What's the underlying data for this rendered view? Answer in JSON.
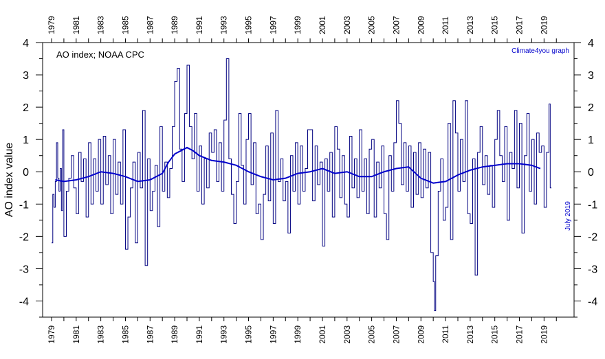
{
  "chart_data": {
    "type": "line",
    "title": "AO index; NOAA CPC",
    "credit": "Climate4you graph",
    "date_note": "July 2019",
    "ylabel": "AO index value",
    "xlabel": "",
    "xlim": [
      1979,
      2020.6
    ],
    "ylim": [
      -4.5,
      4
    ],
    "y_ticks": [
      4,
      3,
      2,
      1,
      0,
      -1,
      -2,
      -3,
      -4
    ],
    "x_tick_labels": [
      "1979",
      "1981",
      "1983",
      "1985",
      "1987",
      "1989",
      "1991",
      "1993",
      "1995",
      "1997",
      "1999",
      "2001",
      "2003",
      "2005",
      "2007",
      "2009",
      "2011",
      "2013",
      "2015",
      "2017",
      "2019"
    ],
    "grid": false,
    "series": [
      {
        "name": "",
        "style": "monthly-step",
        "color": "#000080",
        "points": [
          [
            1979.0,
            -2.2
          ],
          [
            1979.1,
            -0.7
          ],
          [
            1979.2,
            -1.1
          ],
          [
            1979.3,
            -0.3
          ],
          [
            1979.4,
            0.9
          ],
          [
            1979.5,
            -0.2
          ],
          [
            1979.6,
            -0.6
          ],
          [
            1979.7,
            0.1
          ],
          [
            1979.8,
            -1.2
          ],
          [
            1979.9,
            1.3
          ],
          [
            1980.0,
            -2.0
          ],
          [
            1980.2,
            -0.6
          ],
          [
            1980.4,
            -0.2
          ],
          [
            1980.6,
            0.5
          ],
          [
            1980.8,
            -0.5
          ],
          [
            1981.0,
            -1.3
          ],
          [
            1981.2,
            0.6
          ],
          [
            1981.4,
            -0.3
          ],
          [
            1981.6,
            0.4
          ],
          [
            1981.8,
            -1.4
          ],
          [
            1982.0,
            0.9
          ],
          [
            1982.2,
            -1.0
          ],
          [
            1982.4,
            0.4
          ],
          [
            1982.6,
            -0.6
          ],
          [
            1982.8,
            1.0
          ],
          [
            1983.0,
            -1.0
          ],
          [
            1983.2,
            1.1
          ],
          [
            1983.4,
            -0.4
          ],
          [
            1983.6,
            0.5
          ],
          [
            1983.8,
            -1.3
          ],
          [
            1984.0,
            1.0
          ],
          [
            1984.2,
            -0.7
          ],
          [
            1984.4,
            0.3
          ],
          [
            1984.6,
            -1.0
          ],
          [
            1984.8,
            1.3
          ],
          [
            1985.0,
            -2.4
          ],
          [
            1985.2,
            -1.4
          ],
          [
            1985.4,
            -0.5
          ],
          [
            1985.6,
            0.3
          ],
          [
            1985.8,
            -2.2
          ],
          [
            1986.0,
            0.6
          ],
          [
            1986.2,
            -0.5
          ],
          [
            1986.4,
            1.9
          ],
          [
            1986.6,
            -2.9
          ],
          [
            1986.8,
            0.4
          ],
          [
            1987.0,
            -1.2
          ],
          [
            1987.2,
            -0.6
          ],
          [
            1987.4,
            0.2
          ],
          [
            1987.6,
            -1.7
          ],
          [
            1987.8,
            1.4
          ],
          [
            1988.0,
            -0.6
          ],
          [
            1988.2,
            0.3
          ],
          [
            1988.4,
            -0.8
          ],
          [
            1988.6,
            0.1
          ],
          [
            1988.8,
            1.4
          ],
          [
            1989.0,
            2.8
          ],
          [
            1989.2,
            3.2
          ],
          [
            1989.4,
            0.7
          ],
          [
            1989.6,
            -0.3
          ],
          [
            1989.8,
            1.8
          ],
          [
            1990.0,
            3.3
          ],
          [
            1990.2,
            1.4
          ],
          [
            1990.4,
            0.4
          ],
          [
            1990.6,
            1.8
          ],
          [
            1990.8,
            -0.6
          ],
          [
            1991.0,
            0.8
          ],
          [
            1991.2,
            -1.0
          ],
          [
            1991.4,
            0.4
          ],
          [
            1991.6,
            -0.5
          ],
          [
            1991.8,
            1.2
          ],
          [
            1992.0,
            0.6
          ],
          [
            1992.2,
            1.3
          ],
          [
            1992.4,
            -0.3
          ],
          [
            1992.6,
            0.9
          ],
          [
            1992.8,
            -0.6
          ],
          [
            1993.0,
            1.6
          ],
          [
            1993.2,
            3.5
          ],
          [
            1993.4,
            0.4
          ],
          [
            1993.6,
            -0.7
          ],
          [
            1993.8,
            -1.6
          ],
          [
            1994.0,
            -0.3
          ],
          [
            1994.2,
            1.8
          ],
          [
            1994.4,
            0.2
          ],
          [
            1994.6,
            -1.0
          ],
          [
            1994.8,
            1.0
          ],
          [
            1995.0,
            1.8
          ],
          [
            1995.2,
            -0.4
          ],
          [
            1995.4,
            0.9
          ],
          [
            1995.6,
            -1.3
          ],
          [
            1995.8,
            -1.0
          ],
          [
            1996.0,
            -2.1
          ],
          [
            1996.2,
            -0.7
          ],
          [
            1996.4,
            0.8
          ],
          [
            1996.6,
            -0.9
          ],
          [
            1996.8,
            1.2
          ],
          [
            1997.0,
            -1.6
          ],
          [
            1997.2,
            1.9
          ],
          [
            1997.4,
            -0.3
          ],
          [
            1997.6,
            0.4
          ],
          [
            1997.8,
            -0.9
          ],
          [
            1998.0,
            -0.3
          ],
          [
            1998.2,
            -1.9
          ],
          [
            1998.4,
            0.5
          ],
          [
            1998.6,
            -0.6
          ],
          [
            1998.8,
            0.9
          ],
          [
            1999.0,
            -1.0
          ],
          [
            1999.2,
            0.8
          ],
          [
            1999.4,
            -0.6
          ],
          [
            1999.6,
            0.1
          ],
          [
            1999.8,
            1.3
          ],
          [
            2000.0,
            1.3
          ],
          [
            2000.2,
            -0.9
          ],
          [
            2000.4,
            0.8
          ],
          [
            2000.6,
            -0.4
          ],
          [
            2000.8,
            0.3
          ],
          [
            2001.0,
            -2.3
          ],
          [
            2001.2,
            0.4
          ],
          [
            2001.4,
            -0.6
          ],
          [
            2001.6,
            0.6
          ],
          [
            2001.8,
            -1.4
          ],
          [
            2002.0,
            1.4
          ],
          [
            2002.2,
            0.7
          ],
          [
            2002.4,
            -0.8
          ],
          [
            2002.6,
            0.5
          ],
          [
            2002.8,
            -1.0
          ],
          [
            2003.0,
            -1.4
          ],
          [
            2003.2,
            1.1
          ],
          [
            2003.4,
            -0.5
          ],
          [
            2003.6,
            0.4
          ],
          [
            2003.8,
            -0.8
          ],
          [
            2004.0,
            1.3
          ],
          [
            2004.2,
            -0.6
          ],
          [
            2004.4,
            0.4
          ],
          [
            2004.6,
            -1.3
          ],
          [
            2004.8,
            0.7
          ],
          [
            2005.0,
            1.0
          ],
          [
            2005.2,
            -1.4
          ],
          [
            2005.4,
            0.3
          ],
          [
            2005.6,
            -0.5
          ],
          [
            2005.8,
            0.8
          ],
          [
            2006.0,
            -1.3
          ],
          [
            2006.2,
            -2.1
          ],
          [
            2006.4,
            0.5
          ],
          [
            2006.6,
            -0.6
          ],
          [
            2006.8,
            0.9
          ],
          [
            2007.0,
            2.2
          ],
          [
            2007.2,
            1.5
          ],
          [
            2007.4,
            -0.4
          ],
          [
            2007.6,
            0.9
          ],
          [
            2007.8,
            -0.6
          ],
          [
            2008.0,
            0.8
          ],
          [
            2008.2,
            -1.1
          ],
          [
            2008.4,
            0.6
          ],
          [
            2008.6,
            -0.7
          ],
          [
            2008.8,
            0.9
          ],
          [
            2009.0,
            -0.8
          ],
          [
            2009.2,
            0.7
          ],
          [
            2009.4,
            -0.5
          ],
          [
            2009.6,
            0.6
          ],
          [
            2009.8,
            -2.5
          ],
          [
            2010.0,
            -3.4
          ],
          [
            2010.1,
            -4.3
          ],
          [
            2010.2,
            -2.6
          ],
          [
            2010.4,
            -0.6
          ],
          [
            2010.6,
            0.4
          ],
          [
            2010.8,
            -1.5
          ],
          [
            2011.0,
            -1.1
          ],
          [
            2011.2,
            1.5
          ],
          [
            2011.4,
            -2.1
          ],
          [
            2011.6,
            2.2
          ],
          [
            2011.8,
            1.2
          ],
          [
            2012.0,
            -0.6
          ],
          [
            2012.2,
            1.0
          ],
          [
            2012.4,
            -0.3
          ],
          [
            2012.6,
            2.2
          ],
          [
            2012.8,
            -1.3
          ],
          [
            2013.0,
            -1.6
          ],
          [
            2013.2,
            0.4
          ],
          [
            2013.4,
            -3.2
          ],
          [
            2013.6,
            0.6
          ],
          [
            2013.8,
            1.4
          ],
          [
            2014.0,
            -0.4
          ],
          [
            2014.2,
            0.5
          ],
          [
            2014.4,
            -0.7
          ],
          [
            2014.6,
            0.2
          ],
          [
            2014.8,
            -1.1
          ],
          [
            2015.0,
            1.0
          ],
          [
            2015.2,
            1.9
          ],
          [
            2015.4,
            0.5
          ],
          [
            2015.6,
            -0.3
          ],
          [
            2015.8,
            1.4
          ],
          [
            2016.0,
            -1.5
          ],
          [
            2016.2,
            0.6
          ],
          [
            2016.4,
            0.1
          ],
          [
            2016.6,
            1.9
          ],
          [
            2016.8,
            -0.5
          ],
          [
            2017.0,
            1.5
          ],
          [
            2017.2,
            -1.9
          ],
          [
            2017.4,
            0.5
          ],
          [
            2017.6,
            1.8
          ],
          [
            2017.8,
            -0.6
          ],
          [
            2018.0,
            1.0
          ],
          [
            2018.2,
            -1.0
          ],
          [
            2018.4,
            1.2
          ],
          [
            2018.6,
            0.6
          ],
          [
            2018.8,
            0.8
          ],
          [
            2019.0,
            -1.1
          ],
          [
            2019.2,
            0.6
          ],
          [
            2019.4,
            2.1
          ],
          [
            2019.5,
            -0.5
          ]
        ]
      },
      {
        "name": "",
        "style": "running-mean",
        "color": "#0000cc",
        "points": [
          [
            1979.3,
            -0.25
          ],
          [
            1980.0,
            -0.3
          ],
          [
            1981.0,
            -0.25
          ],
          [
            1982.0,
            -0.15
          ],
          [
            1983.0,
            0.0
          ],
          [
            1984.0,
            -0.05
          ],
          [
            1985.0,
            -0.15
          ],
          [
            1986.0,
            -0.3
          ],
          [
            1987.0,
            -0.25
          ],
          [
            1988.0,
            -0.05
          ],
          [
            1988.5,
            0.3
          ],
          [
            1989.0,
            0.55
          ],
          [
            1990.0,
            0.75
          ],
          [
            1990.5,
            0.65
          ],
          [
            1991.0,
            0.5
          ],
          [
            1992.0,
            0.35
          ],
          [
            1993.0,
            0.3
          ],
          [
            1994.0,
            0.2
          ],
          [
            1995.0,
            0.0
          ],
          [
            1996.0,
            -0.15
          ],
          [
            1997.0,
            -0.25
          ],
          [
            1998.0,
            -0.2
          ],
          [
            1999.0,
            -0.05
          ],
          [
            2000.0,
            0.0
          ],
          [
            2001.0,
            0.1
          ],
          [
            2002.0,
            -0.05
          ],
          [
            2003.0,
            0.0
          ],
          [
            2004.0,
            -0.15
          ],
          [
            2005.0,
            -0.15
          ],
          [
            2006.0,
            0.0
          ],
          [
            2007.0,
            0.1
          ],
          [
            2008.0,
            0.15
          ],
          [
            2009.0,
            -0.2
          ],
          [
            2010.0,
            -0.35
          ],
          [
            2011.0,
            -0.3
          ],
          [
            2012.0,
            -0.1
          ],
          [
            2013.0,
            0.05
          ],
          [
            2014.0,
            0.15
          ],
          [
            2015.0,
            0.2
          ],
          [
            2016.0,
            0.25
          ],
          [
            2017.0,
            0.25
          ],
          [
            2018.0,
            0.2
          ],
          [
            2018.7,
            0.1
          ]
        ]
      }
    ]
  }
}
